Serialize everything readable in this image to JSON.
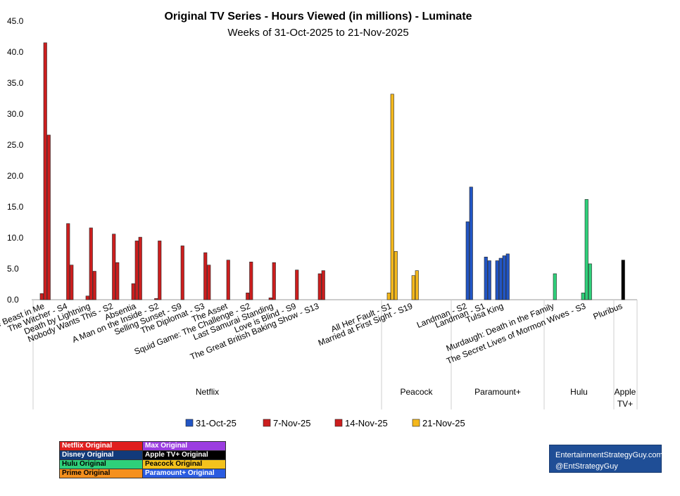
{
  "chart_data": {
    "type": "bar",
    "title": "Original TV Series - Hours Viewed (in millions) - Luminate",
    "subtitle": "Weeks of 31-Oct-2025 to 21-Nov-2025",
    "ylim": [
      0,
      45
    ],
    "yticks": [
      "0.0",
      "5.0",
      "10.0",
      "15.0",
      "20.0",
      "25.0",
      "30.0",
      "35.0",
      "40.0",
      "45.0"
    ],
    "series": [
      {
        "name": "31-Oct-25"
      },
      {
        "name": "7-Nov-25"
      },
      {
        "name": "14-Nov-25"
      },
      {
        "name": "21-Nov-25"
      }
    ],
    "groups": [
      {
        "name": "Netflix",
        "shows": [
          {
            "label": "The Beast in Me",
            "color": "#cc1e1e",
            "values": [
              null,
              1.0,
              41.5,
              26.6
            ]
          },
          {
            "label": "The Witcher - S4",
            "color": "#cc1e1e",
            "values": [
              null,
              null,
              12.3,
              5.6
            ]
          },
          {
            "label": "Death by Lightning",
            "color": "#cc1e1e",
            "values": [
              null,
              0.6,
              11.6,
              4.6
            ]
          },
          {
            "label": "Nobody Wants This - S2",
            "color": "#cc1e1e",
            "values": [
              null,
              null,
              10.6,
              6.0
            ]
          },
          {
            "label": "Absentia",
            "color": "#cc1e1e",
            "values": [
              null,
              2.6,
              9.5,
              10.1
            ]
          },
          {
            "label": "A Man on the Inside - S2",
            "color": "#cc1e1e",
            "values": [
              null,
              0.2,
              9.5,
              null
            ]
          },
          {
            "label": "Selling Sunset - S9",
            "color": "#cc1e1e",
            "values": [
              null,
              null,
              8.7,
              null
            ]
          },
          {
            "label": "The Diplomat - S3",
            "color": "#cc1e1e",
            "values": [
              null,
              null,
              7.6,
              5.6
            ]
          },
          {
            "label": "The Asset",
            "color": "#cc1e1e",
            "values": [
              null,
              null,
              6.4,
              null
            ]
          },
          {
            "label": "Squid Game: The Challenge - S2",
            "color": "#cc1e1e",
            "values": [
              null,
              1.1,
              6.1,
              null
            ]
          },
          {
            "label": "Last Samurai Standing",
            "color": "#cc1e1e",
            "values": [
              null,
              0.3,
              6.0,
              null
            ]
          },
          {
            "label": "Love is Blind - S9",
            "color": "#cc1e1e",
            "values": [
              null,
              null,
              4.8,
              null
            ]
          },
          {
            "label": "The Great British Baking Show - S13",
            "color": "#cc1e1e",
            "values": [
              null,
              null,
              4.2,
              4.7
            ]
          }
        ]
      },
      {
        "name": "Peacock",
        "shows": [
          {
            "label": "All Her Fault - S1",
            "color": "#f4b81c",
            "values": [
              null,
              1.1,
              33.2,
              7.8
            ]
          },
          {
            "label": "Married at First Sight - S19",
            "color": "#f4b81c",
            "values": [
              null,
              null,
              3.9,
              4.7
            ]
          }
        ]
      },
      {
        "name": "Paramount+",
        "shows": [
          {
            "label": "Landman - S2",
            "color": "#2255c4",
            "values": [
              null,
              null,
              12.6,
              18.2
            ]
          },
          {
            "label": "Landman - S1",
            "color": "#2255c4",
            "values": [
              null,
              null,
              6.9,
              6.3
            ]
          },
          {
            "label": "Tulsa King",
            "color": "#2255c4",
            "values": [
              6.3,
              6.7,
              7.1,
              7.4
            ]
          }
        ]
      },
      {
        "name": "Hulu",
        "shows": [
          {
            "label": "Murdaugh: Death in the Family",
            "color": "#2fd07a",
            "values": [
              null,
              null,
              4.2,
              null
            ]
          },
          {
            "label": "The Secret Lives of Mormon Wives - S3",
            "color": "#2fd07a",
            "values": [
              null,
              1.1,
              16.2,
              5.8
            ]
          }
        ]
      },
      {
        "name": "Apple TV+",
        "shows": [
          {
            "label": "Pluribus",
            "color": "#000000",
            "values": [
              null,
              null,
              6.4,
              null
            ]
          }
        ]
      }
    ],
    "legend_colors": [
      "#2255c4",
      "#cc1e1e",
      "#cc1e1e",
      "#f4b81c"
    ],
    "legend_position": "bottom"
  },
  "origin_legend": [
    [
      {
        "label": "Netflix Original",
        "bg": "#e01e1e",
        "fg": "#ffffff"
      },
      {
        "label": "Max Original",
        "bg": "#9b3de0",
        "fg": "#ffffff"
      }
    ],
    [
      {
        "label": "Disney Original",
        "bg": "#123a7a",
        "fg": "#ffffff"
      },
      {
        "label": "Apple TV+ Original",
        "bg": "#000000",
        "fg": "#ffffff"
      }
    ],
    [
      {
        "label": "Hulu Original",
        "bg": "#2fd07a",
        "fg": "#000000"
      },
      {
        "label": "Peacock Original",
        "bg": "#f4c21c",
        "fg": "#000000"
      }
    ],
    [
      {
        "label": "Prime Original",
        "bg": "#f5901e",
        "fg": "#000000"
      },
      {
        "label": "Paramount+ Original",
        "bg": "#2a5be0",
        "fg": "#ffffff"
      }
    ]
  ],
  "branding": {
    "line1": "EntertainmentStrategyGuy.com",
    "line2": "@EntStrategyGuy"
  }
}
